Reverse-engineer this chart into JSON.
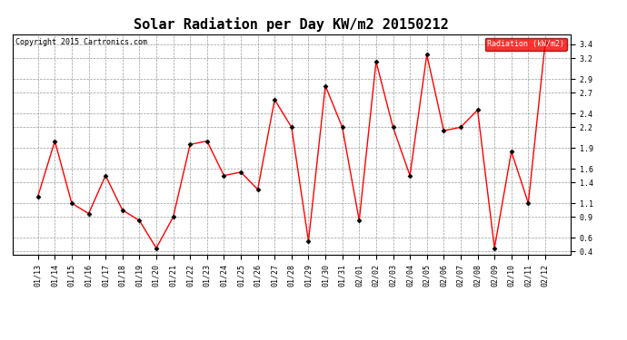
{
  "title": "Solar Radiation per Day KW/m2 20150212",
  "copyright": "Copyright 2015 Cartronics.com",
  "legend_label": "Radiation (kW/m2)",
  "labels": [
    "01/13",
    "01/14",
    "01/15",
    "01/16",
    "01/17",
    "01/18",
    "01/19",
    "01/20",
    "01/21",
    "01/22",
    "01/23",
    "01/24",
    "01/25",
    "01/26",
    "01/27",
    "01/28",
    "01/29",
    "01/30",
    "01/31",
    "02/01",
    "02/02",
    "02/03",
    "02/04",
    "02/05",
    "02/06",
    "02/07",
    "02/08",
    "02/09",
    "02/10",
    "02/11",
    "02/12"
  ],
  "values": [
    1.2,
    2.0,
    1.1,
    0.95,
    1.5,
    1.0,
    0.85,
    0.45,
    0.9,
    1.95,
    2.0,
    1.5,
    1.55,
    1.3,
    2.6,
    2.2,
    0.55,
    2.8,
    2.2,
    0.85,
    3.15,
    2.2,
    1.5,
    3.25,
    2.15,
    2.2,
    2.45,
    0.45,
    1.85,
    1.1,
    3.42
  ],
  "line_color": "red",
  "marker_color": "black",
  "background_color": "white",
  "grid_color": "#999999",
  "ylim": [
    0.35,
    3.55
  ],
  "yticks": [
    0.4,
    0.6,
    0.9,
    1.1,
    1.4,
    1.6,
    1.9,
    2.2,
    2.4,
    2.7,
    2.9,
    3.2,
    3.4
  ],
  "title_fontsize": 11,
  "tick_fontsize": 6,
  "copyright_fontsize": 6,
  "legend_bg": "red",
  "legend_text_color": "white",
  "legend_fontsize": 6
}
